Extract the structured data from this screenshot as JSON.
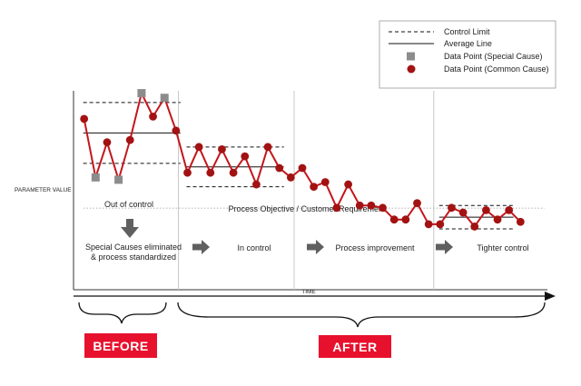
{
  "chart_data": {
    "type": "line",
    "title": "",
    "xlabel": "TIME",
    "ylabel": "PARAMETER VALUE",
    "objective_label": "Process Objective / Customer Requirement",
    "legend": {
      "placement": "top-right",
      "entries": [
        {
          "key": "control_limit",
          "label": "Control Limit",
          "symbol": "dashed-line"
        },
        {
          "key": "average_line",
          "label": "Average Line",
          "symbol": "solid-line"
        },
        {
          "key": "special_cause",
          "label": "Data Point (Special Cause)",
          "symbol": "square",
          "color": "#8c8c8c"
        },
        {
          "key": "common_cause",
          "label": "Data Point (Common Cause)",
          "symbol": "circle",
          "color": "#a31212"
        }
      ]
    },
    "phases": [
      {
        "name": "Out of control",
        "action": "Special Causes eliminated\n& process standardized",
        "x_range": [
          1,
          9
        ],
        "ucl": 80,
        "avg": 67,
        "lcl": 54
      },
      {
        "name": "In control",
        "action": "",
        "x_range": [
          10,
          18
        ],
        "ucl": 61,
        "avg": 52.5,
        "lcl": 44
      },
      {
        "name": "Process improvement",
        "action": "",
        "x_range": [
          19,
          31
        ],
        "ucl": null,
        "avg": null,
        "lcl": null
      },
      {
        "name": "Tighter control",
        "action": "",
        "x_range": [
          32,
          38
        ],
        "ucl": 36,
        "avg": 31,
        "lcl": 26
      }
    ],
    "objective_level": 38,
    "points": [
      {
        "x": 1,
        "y": 73,
        "kind": "common"
      },
      {
        "x": 2,
        "y": 48,
        "kind": "special"
      },
      {
        "x": 3,
        "y": 63,
        "kind": "common"
      },
      {
        "x": 4,
        "y": 47,
        "kind": "special"
      },
      {
        "x": 5,
        "y": 64,
        "kind": "common"
      },
      {
        "x": 6,
        "y": 84,
        "kind": "special"
      },
      {
        "x": 7,
        "y": 74,
        "kind": "common"
      },
      {
        "x": 8,
        "y": 82,
        "kind": "special"
      },
      {
        "x": 9,
        "y": 68,
        "kind": "common"
      },
      {
        "x": 10,
        "y": 50,
        "kind": "common"
      },
      {
        "x": 11,
        "y": 61,
        "kind": "common"
      },
      {
        "x": 12,
        "y": 50,
        "kind": "common"
      },
      {
        "x": 13,
        "y": 60,
        "kind": "common"
      },
      {
        "x": 14,
        "y": 50,
        "kind": "common"
      },
      {
        "x": 15,
        "y": 57,
        "kind": "common"
      },
      {
        "x": 16,
        "y": 45,
        "kind": "common"
      },
      {
        "x": 17,
        "y": 61,
        "kind": "common"
      },
      {
        "x": 18,
        "y": 52,
        "kind": "common"
      },
      {
        "x": 19,
        "y": 48,
        "kind": "common"
      },
      {
        "x": 20,
        "y": 52,
        "kind": "common"
      },
      {
        "x": 21,
        "y": 44,
        "kind": "common"
      },
      {
        "x": 22,
        "y": 46,
        "kind": "common"
      },
      {
        "x": 23,
        "y": 35,
        "kind": "common"
      },
      {
        "x": 24,
        "y": 45,
        "kind": "common"
      },
      {
        "x": 25,
        "y": 36,
        "kind": "common"
      },
      {
        "x": 26,
        "y": 36,
        "kind": "common"
      },
      {
        "x": 27,
        "y": 35,
        "kind": "common"
      },
      {
        "x": 28,
        "y": 30,
        "kind": "common"
      },
      {
        "x": 29,
        "y": 30,
        "kind": "common"
      },
      {
        "x": 30,
        "y": 37,
        "kind": "common"
      },
      {
        "x": 31,
        "y": 28,
        "kind": "common"
      },
      {
        "x": 32,
        "y": 28,
        "kind": "common"
      },
      {
        "x": 33,
        "y": 35,
        "kind": "common"
      },
      {
        "x": 34,
        "y": 33,
        "kind": "common"
      },
      {
        "x": 35,
        "y": 27,
        "kind": "common"
      },
      {
        "x": 36,
        "y": 34,
        "kind": "common"
      },
      {
        "x": 37,
        "y": 30,
        "kind": "common"
      },
      {
        "x": 38,
        "y": 34,
        "kind": "common"
      },
      {
        "x": 39,
        "y": 29,
        "kind": "common"
      }
    ],
    "xlim": [
      0,
      40
    ],
    "ylim": [
      0,
      85
    ],
    "grid": false
  },
  "labels": {
    "before": "BEFORE",
    "after": "AFTER"
  },
  "colors": {
    "line": "#c4161c",
    "common": "#a31212",
    "special": "#8c8c8c",
    "arrow": "#606060",
    "badge": "#e8112d"
  }
}
